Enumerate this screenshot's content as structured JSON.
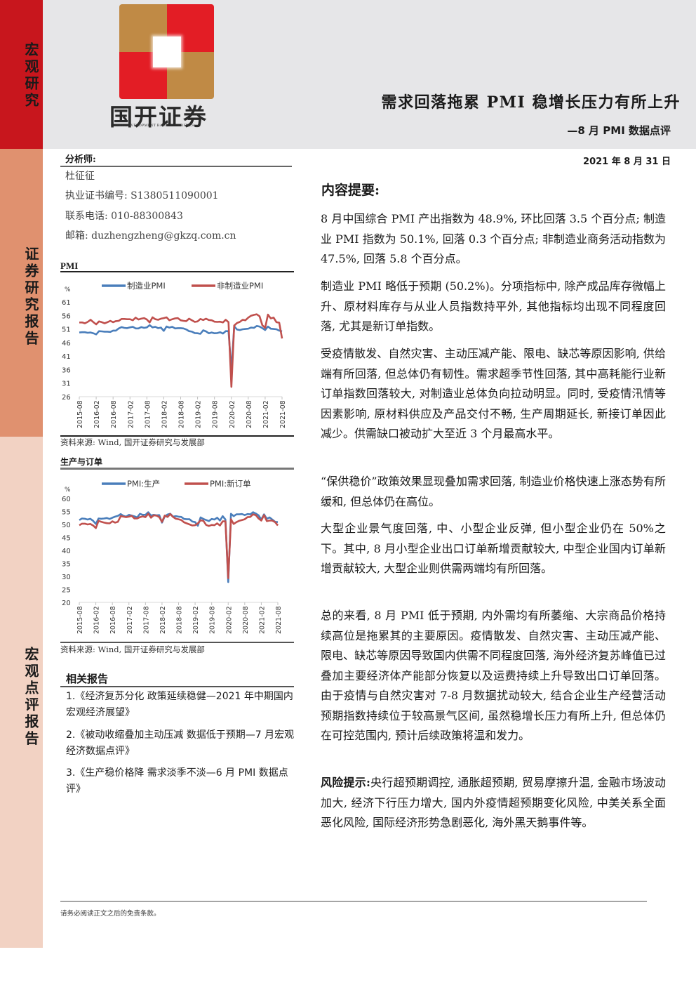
{
  "sidebar": {
    "section1": "宏观研究",
    "section2": "证券研究报告",
    "section3": "宏观点评报告",
    "colors": {
      "top": "#c8161d",
      "middle": "#e0916f",
      "bottom": "#f2d2c3"
    }
  },
  "header": {
    "logo_cn": "国开证券",
    "logo_en": "CHINA DEVELOPMENT BANK SECURITIES",
    "title": "需求回落拖累 PMI 稳增长压力有所上升",
    "subtitle": "—8 月 PMI 数据点评",
    "date": "2021 年 8 月 31 日"
  },
  "analyst": {
    "label": "分析师:",
    "name": "杜征征",
    "license": "执业证书编号: S1380511090001",
    "phone": "联系电话: 010-88300843",
    "email": "邮箱: duzhengzheng@gkzq.com.cn"
  },
  "charts": {
    "pmi": {
      "title": "PMI",
      "unit": "%",
      "source": "资料来源: Wind, 国开证券研究与发展部"
    },
    "production": {
      "title": "生产与订单",
      "unit": "%",
      "source": "资料来源: Wind, 国开证券研究与发展部"
    }
  },
  "chart_data": [
    {
      "type": "line",
      "title": "PMI",
      "ylabel": "%",
      "ylim": [
        26,
        61
      ],
      "yticks": [
        26,
        31,
        36,
        41,
        46,
        51,
        56,
        61
      ],
      "legend_position": "top",
      "grid": false,
      "xticks": [
        "2015-08",
        "2016-02",
        "2016-08",
        "2017-02",
        "2017-08",
        "2018-02",
        "2018-08",
        "2019-02",
        "2019-08",
        "2020-02",
        "2020-08",
        "2021-02",
        "2021-08"
      ],
      "x_start": "2015-08",
      "x_end": "2021-08",
      "frequency": "monthly",
      "series": [
        {
          "name": "制造业PMI",
          "color": "#4a7ebb",
          "values": [
            49.7,
            49.8,
            49.8,
            49.6,
            49.7,
            49.4,
            49.0,
            50.2,
            50.1,
            50.0,
            50.0,
            49.9,
            50.4,
            50.4,
            51.2,
            51.7,
            51.4,
            51.3,
            51.6,
            51.8,
            51.2,
            51.2,
            51.7,
            51.4,
            51.6,
            52.4,
            51.6,
            51.8,
            51.3,
            51.5,
            50.3,
            51.9,
            51.5,
            51.8,
            51.2,
            51.3,
            51.3,
            51.2,
            50.8,
            50.2,
            50.0,
            49.5,
            49.4,
            49.2,
            50.5,
            50.1,
            49.4,
            49.7,
            49.4,
            49.5,
            49.8,
            49.3,
            50.2,
            50.2,
            35.7,
            52.0,
            50.8,
            50.6,
            50.9,
            51.0,
            51.1,
            51.5,
            51.4,
            52.1,
            51.9,
            51.3,
            50.6,
            51.9,
            51.1,
            51.0,
            50.9,
            50.4,
            50.1
          ]
        },
        {
          "name": "非制造业PMI",
          "color": "#c0504d",
          "values": [
            53.4,
            53.4,
            53.1,
            53.6,
            54.4,
            53.5,
            52.7,
            53.8,
            53.5,
            53.1,
            53.5,
            54.0,
            53.5,
            53.9,
            54.0,
            54.7,
            54.7,
            54.6,
            54.6,
            54.2,
            55.2,
            54.5,
            54.8,
            55.0,
            54.5,
            53.4,
            55.3,
            54.6,
            54.4,
            54.8,
            55.0,
            55.3,
            54.2,
            54.6,
            54.9,
            55.0,
            54.2,
            54.0,
            53.9,
            54.8,
            54.2,
            53.6,
            53.8,
            54.7,
            54.3,
            54.8,
            54.3,
            54.2,
            53.7,
            53.6,
            53.7,
            53.4,
            54.4,
            53.5,
            29.6,
            52.3,
            53.2,
            53.6,
            54.4,
            54.2,
            55.2,
            55.9,
            56.2,
            56.4,
            55.7,
            52.4,
            51.4,
            56.3,
            54.9,
            55.2,
            53.5,
            53.3,
            47.5
          ]
        }
      ]
    },
    {
      "type": "line",
      "title": "生产与订单",
      "ylabel": "%",
      "ylim": [
        20,
        60
      ],
      "yticks": [
        20,
        25,
        30,
        35,
        40,
        45,
        50,
        55,
        60
      ],
      "legend_position": "top",
      "grid": false,
      "xticks": [
        "2015-08",
        "2016-02",
        "2016-08",
        "2017-02",
        "2017-08",
        "2018-02",
        "2018-08",
        "2019-02",
        "2019-08",
        "2020-02",
        "2020-08",
        "2021-02",
        "2021-08"
      ],
      "x_start": "2015-08",
      "x_end": "2021-08",
      "frequency": "monthly",
      "series": [
        {
          "name": "PMI:生产",
          "color": "#4a7ebb",
          "values": [
            51.7,
            52.3,
            52.2,
            51.9,
            52.2,
            51.4,
            50.2,
            52.3,
            52.2,
            52.3,
            52.5,
            52.1,
            52.6,
            53.0,
            53.3,
            54.0,
            53.3,
            53.0,
            53.7,
            53.4,
            53.1,
            52.7,
            54.1,
            53.7,
            53.7,
            54.7,
            53.4,
            53.7,
            53.5,
            53.6,
            50.7,
            53.1,
            53.8,
            54.1,
            53.0,
            53.2,
            53.0,
            52.9,
            52.1,
            52.0,
            52.0,
            51.1,
            50.9,
            49.5,
            52.7,
            52.1,
            51.7,
            51.3,
            52.1,
            51.9,
            52.6,
            51.5,
            53.2,
            51.9,
            27.8,
            54.1,
            53.2,
            53.9,
            53.9,
            54.0,
            53.6,
            54.0,
            53.9,
            54.7,
            54.2,
            53.5,
            51.9,
            53.9,
            52.2,
            52.7,
            51.9,
            51.0,
            50.9
          ]
        },
        {
          "name": "PMI:新订单",
          "color": "#c0504d",
          "values": [
            49.7,
            50.3,
            50.3,
            50.0,
            50.2,
            49.6,
            48.6,
            51.4,
            51.0,
            50.7,
            50.5,
            50.4,
            51.2,
            50.7,
            51.0,
            53.2,
            53.0,
            52.8,
            53.0,
            53.3,
            52.3,
            52.3,
            52.8,
            53.1,
            52.8,
            54.1,
            52.6,
            53.5,
            53.4,
            52.8,
            51.0,
            53.4,
            52.9,
            54.0,
            52.9,
            52.2,
            52.0,
            51.7,
            50.8,
            50.4,
            50.0,
            49.6,
            49.7,
            50.4,
            51.6,
            51.4,
            49.8,
            49.4,
            49.8,
            49.7,
            50.4,
            49.6,
            51.2,
            51.2,
            29.3,
            52.0,
            50.2,
            50.9,
            51.4,
            51.7,
            52.0,
            52.8,
            52.9,
            53.9,
            53.6,
            52.3,
            51.5,
            53.6,
            51.3,
            51.5,
            51.5,
            50.9,
            49.6
          ]
        }
      ]
    }
  ],
  "related": {
    "title": "相关报告",
    "items": [
      "1.《经济复苏分化 政策延续稳健—2021 年中期国内宏观经济展望》",
      "2.《被动收缩叠加主动压减 数据低于预期—7 月宏观经济数据点评》",
      "3.《生产稳价格降 需求淡季不淡—6 月 PMI 数据点评》"
    ]
  },
  "summary": {
    "title": "内容提要:",
    "paragraphs": [
      "8 月中国综合 PMI 产出指数为 48.9%, 环比回落 3.5 个百分点; 制造业 PMI 指数为 50.1%, 回落 0.3 个百分点; 非制造业商务活动指数为 47.5%, 回落 5.8 个百分点。",
      "制造业 PMI 略低于预期 (50.2%)。分项指标中, 除产成品库存微幅上升、原材料库存与从业人员指数持平外, 其他指标均出现不同程度回落, 尤其是新订单指数。",
      "受疫情散发、自然灾害、主动压减产能、限电、缺芯等原因影响, 供给端有所回落, 但总体仍有韧性。需求超季节性回落, 其中高耗能行业新订单指数回落较大, 对制造业总体负向拉动明显。同时, 受疫情汛情等因素影响, 原材料供应及产品交付不畅, 生产周期延长, 新接订单因此减少。供需缺口被动扩大至近 3 个月最高水平。",
      "“保供稳价”政策效果显现叠加需求回落, 制造业价格快速上涨态势有所缓和, 但总体仍在高位。",
      "大型企业景气度回落, 中、小型企业反弹, 但小型企业仍在 50%之下。其中, 8 月小型企业出口订单新增贡献较大, 中型企业国内订单新增贡献较大, 大型企业则供需两端均有所回落。",
      "总的来看, 8 月 PMI 低于预期, 内外需均有所萎缩、大宗商品价格持续高位是拖累其的主要原因。疫情散发、自然灾害、主动压减产能、限电、缺芯等原因导致国内供需不同程度回落, 海外经济复苏峰值已过叠加主要经济体产能部分恢复以及运费持续上升导致出口订单回落。由于疫情与自然灾害对 7-8 月数据扰动较大, 结合企业生产经营活动预期指数持续位于较高景气区间, 虽然稳增长压力有所上升, 但总体仍在可控范围内, 预计后续政策将温和发力。"
    ],
    "risk_label": "风险提示:",
    "risk_text": "央行超预期调控, 通胀超预期, 贸易摩擦升温, 金融市场波动加大, 经济下行压力增大, 国内外疫情超预期变化风险, 中美关系全面恶化风险, 国际经济形势急剧恶化, 海外黑天鹅事件等。"
  },
  "footer": {
    "disclaimer": "请务必阅读正文之后的免责条款。"
  }
}
